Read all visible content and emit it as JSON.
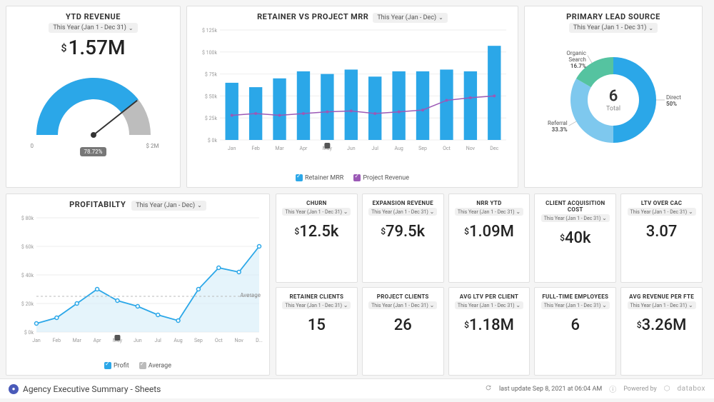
{
  "ytd_revenue": {
    "title": "YTD REVENUE",
    "period": "This Year (Jan 1 - Dec 31)",
    "prefix": "$",
    "value": "1.57M",
    "gauge": {
      "min_label": "0",
      "max_label": "$ 2M",
      "pct_label": "78.72%",
      "pct": 0.787,
      "fill_color": "#2ba7e8",
      "track_color": "#bdbdbd",
      "needle_color": "#333333"
    }
  },
  "mrr_chart": {
    "title": "RETAINER VS PROJECT MRR",
    "period": "This Year (Jan - Dec)",
    "type": "bar+line",
    "categories": [
      "Jan",
      "Feb",
      "Mar",
      "Apr",
      "May",
      "Jun",
      "Jul",
      "Aug",
      "Sep",
      "Oct",
      "Nov",
      "Dec"
    ],
    "retainer_values_k": [
      65,
      60,
      70,
      78,
      75,
      80,
      72,
      78,
      78,
      80,
      78,
      107
    ],
    "project_values_k": [
      28,
      30,
      28,
      30,
      32,
      33,
      30,
      32,
      34,
      45,
      48,
      50
    ],
    "bar_color": "#2ba7e8",
    "line_color": "#9b59b6",
    "y_ticks_k": [
      0,
      25,
      50,
      75,
      100,
      125
    ],
    "y_prefix": "$",
    "y_suffix": "k",
    "grid_color": "#eeeeee",
    "legend": {
      "retainer": "Retainer MRR",
      "project": "Project Revenue"
    },
    "marker_month_index": 4,
    "bar_width": 0.55
  },
  "lead_source": {
    "title": "PRIMARY LEAD SOURCE",
    "period": "This Year (Jan 1 - Dec 31)",
    "center_value": "6",
    "center_label": "Total",
    "slices": [
      {
        "label": "Direct",
        "pct": 50.0,
        "color": "#2ba7e8"
      },
      {
        "label": "Referral",
        "pct": 33.3,
        "color": "#7ec8ee"
      },
      {
        "label": "Organic Search",
        "pct": 16.7,
        "color": "#55c3a0"
      }
    ],
    "donut_thickness": 24
  },
  "profitability": {
    "title": "PROFITABILTY",
    "period": "This Year (Jan - Dec)",
    "type": "line",
    "categories": [
      "Jan",
      "Feb",
      "Mar",
      "Apr",
      "May",
      "Jun",
      "Jul",
      "Aug",
      "Sep",
      "Oct",
      "Nov",
      "D..."
    ],
    "values_k": [
      6,
      10,
      20,
      30,
      22,
      18,
      12,
      8,
      30,
      45,
      42,
      60
    ],
    "average_k": 25,
    "y_ticks_k": [
      0,
      20,
      40,
      60,
      80
    ],
    "y_prefix": "$",
    "y_suffix": "k",
    "line_color": "#2ba7e8",
    "area_fill": "#d4ecf9",
    "avg_color": "#bbbbbb",
    "avg_label": "Average",
    "legend": {
      "profit": "Profit",
      "average": "Average"
    },
    "marker_month_index": 4
  },
  "kpis": [
    {
      "title": "CHURN",
      "period": "This Year (Jan 1 - Dec 31)",
      "prefix": "$",
      "value": "12.5k"
    },
    {
      "title": "EXPANSION REVENUE",
      "period": "This Year (Jan 1 - Dec 31)",
      "prefix": "$",
      "value": "79.5k"
    },
    {
      "title": "NRR YTD",
      "period": "This Year (Jan 1 - Dec 31)",
      "prefix": "$",
      "value": "1.09M"
    },
    {
      "title": "CLIENT ACQUISITION COST",
      "period": "This Year (Jan 1 - Dec 31)",
      "prefix": "$",
      "value": "40k"
    },
    {
      "title": "LTV OVER CAC",
      "period": "This Year (Jan 1 - Dec 31)",
      "prefix": "",
      "value": "3.07"
    },
    {
      "title": "RETAINER CLIENTS",
      "period": "This Year (Jan 1 - Dec 31)",
      "prefix": "",
      "value": "15"
    },
    {
      "title": "PROJECT CLIENTS",
      "period": "This Year (Jan 1 - Dec 31)",
      "prefix": "",
      "value": "26"
    },
    {
      "title": "AVG LTV PER CLIENT",
      "period": "This Year (Jan 1 - Dec 31)",
      "prefix": "$",
      "value": "1.18M"
    },
    {
      "title": "FULL-TIME EMPLOYEES",
      "period": "This Year (Jan 1 - Dec 31)",
      "prefix": "",
      "value": "6"
    },
    {
      "title": "AVG REVENUE PER FTE",
      "period": "This Year (Jan 1 - Dec 31)",
      "prefix": "$",
      "value": "3.26M"
    }
  ],
  "footer": {
    "board_name": "Agency Executive Summary - Sheets",
    "last_update": "last update Sep 8, 2021 at 06:04 AM",
    "powered_by": "Powered by",
    "brand": "databox"
  },
  "colors": {
    "card_border": "#e0e0e0",
    "text_muted": "#888888"
  }
}
